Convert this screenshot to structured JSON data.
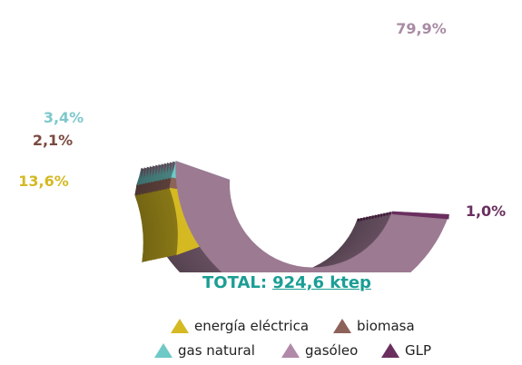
{
  "chart_data": {
    "type": "pie",
    "style": "3d-half-donut",
    "slices": [
      {
        "label": "energía eléctrica",
        "value": 13.6,
        "display": "13,6%",
        "color": "#d4b923",
        "label_color": "#d4b923"
      },
      {
        "label": "biomasa",
        "value": 2.1,
        "display": "2,1%",
        "color": "#8c6259",
        "label_color": "#7a4a40"
      },
      {
        "label": "gas natural",
        "value": 3.4,
        "display": "3,4%",
        "color": "#6fc9c6",
        "label_color": "#7ec8cc"
      },
      {
        "label": "gasóleo",
        "value": 79.9,
        "display": "79,9%",
        "color": "#9c7a92",
        "label_color": "#a98ba5"
      },
      {
        "label": "GLP",
        "value": 1.0,
        "display": "1,0%",
        "color": "#6a2f5f",
        "label_color": "#6a2f5f"
      }
    ]
  },
  "total": {
    "label": "TOTAL:",
    "value": "924,6 ktep"
  },
  "legend": [
    {
      "label": "energía eléctrica",
      "color": "#d4b923"
    },
    {
      "label": "biomasa",
      "color": "#8c6259"
    },
    {
      "label": "gas natural",
      "color": "#6fc9c6"
    },
    {
      "label": "gasóleo",
      "color": "#b08aa8"
    },
    {
      "label": "GLP",
      "color": "#6a2f5f"
    }
  ]
}
